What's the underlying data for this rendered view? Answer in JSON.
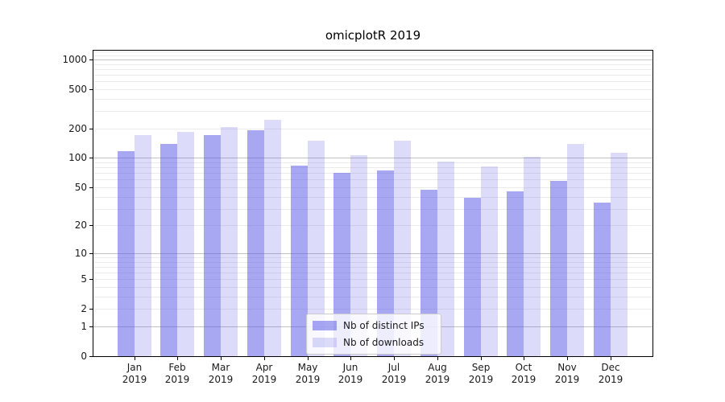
{
  "chart_data": {
    "type": "bar",
    "title": "omicplotR 2019",
    "categories": [
      "Jan",
      "Feb",
      "Mar",
      "Apr",
      "May",
      "Jun",
      "Jul",
      "Aug",
      "Sep",
      "Oct",
      "Nov",
      "Dec"
    ],
    "category_year": "2019",
    "series": [
      {
        "name": "Nb of distinct IPs",
        "color": "rgba(80,80,230,0.5)",
        "values": [
          118,
          138,
          172,
          193,
          84,
          70,
          75,
          47,
          39,
          45,
          58,
          35
        ]
      },
      {
        "name": "Nb of downloads",
        "color": "rgba(80,80,230,0.2)",
        "values": [
          172,
          183,
          207,
          246,
          150,
          106,
          150,
          92,
          82,
          102,
          140,
          112
        ]
      }
    ],
    "yscale": "log1p",
    "ylim": [
      0,
      1250
    ],
    "ytick_labels": [
      "1000",
      "500",
      "200",
      "100",
      "50",
      "20",
      "10",
      "5",
      "2",
      "1",
      "0"
    ],
    "ytick_values": [
      1000,
      500,
      200,
      100,
      50,
      20,
      10,
      5,
      2,
      1,
      0
    ],
    "grid_major_values": [
      1,
      10,
      100,
      1000
    ],
    "grid_minor_values": [
      2,
      3,
      4,
      5,
      6,
      7,
      8,
      9,
      20,
      30,
      40,
      50,
      60,
      70,
      80,
      90,
      200,
      300,
      400,
      500,
      600,
      700,
      800,
      900,
      1100,
      1200
    ],
    "grid": "on",
    "legend_position": "lower center",
    "xlabel": "",
    "ylabel": ""
  },
  "colors": {
    "bar_distinct_ips": "rgba(80,80,230,0.5)",
    "bar_downloads": "rgba(80,80,230,0.2)",
    "grid_major": "#c2c2c2",
    "grid_minor": "#ebebeb",
    "axis": "#000000",
    "text": "#1a1a1a",
    "legend_border": "#cccccc"
  }
}
